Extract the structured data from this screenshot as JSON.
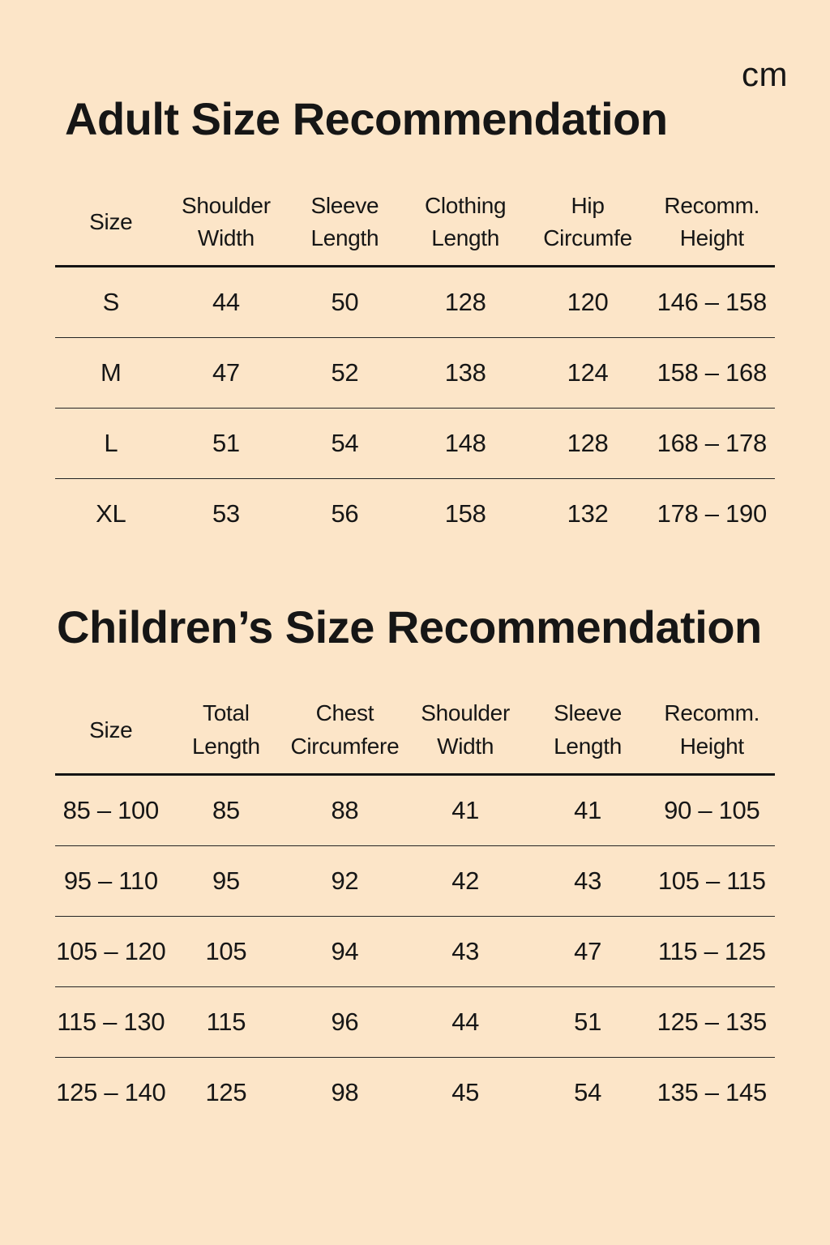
{
  "page": {
    "unit_label": "cm",
    "background_color": "#FCE5C8",
    "text_color": "#161616"
  },
  "adult": {
    "title": "Adult Size Recommendation",
    "headers": [
      {
        "line1": "Size",
        "line2": ""
      },
      {
        "line1": "Shoulder",
        "line2": "Width"
      },
      {
        "line1": "Sleeve",
        "line2": "Length"
      },
      {
        "line1": "Clothing",
        "line2": "Length"
      },
      {
        "line1": "Hip",
        "line2": "Circumfe"
      },
      {
        "line1": "Recomm.",
        "line2": "Height"
      }
    ],
    "rows": [
      [
        "S",
        "44",
        "50",
        "128",
        "120",
        "146 – 158"
      ],
      [
        "M",
        "47",
        "52",
        "138",
        "124",
        "158 – 168"
      ],
      [
        "L",
        "51",
        "54",
        "148",
        "128",
        "168 – 178"
      ],
      [
        "XL",
        "53",
        "56",
        "158",
        "132",
        "178 – 190"
      ]
    ]
  },
  "children": {
    "title": "Children’s Size Recommendation",
    "headers": [
      {
        "line1": "Size",
        "line2": ""
      },
      {
        "line1": "Total",
        "line2": "Length"
      },
      {
        "line1": "Chest",
        "line2": "Circumfere"
      },
      {
        "line1": "Shoulder",
        "line2": "Width"
      },
      {
        "line1": "Sleeve",
        "line2": "Length"
      },
      {
        "line1": "Recomm.",
        "line2": "Height"
      }
    ],
    "rows": [
      [
        "85 – 100",
        "85",
        "88",
        "41",
        "41",
        "90 – 105"
      ],
      [
        "95 – 110",
        "95",
        "92",
        "42",
        "43",
        "105 – 115"
      ],
      [
        "105 – 120",
        "105",
        "94",
        "43",
        "47",
        "115 – 125"
      ],
      [
        "115 – 130",
        "115",
        "96",
        "44",
        "51",
        "125 – 135"
      ],
      [
        "125 – 140",
        "125",
        "98",
        "45",
        "54",
        "135 – 145"
      ]
    ]
  }
}
